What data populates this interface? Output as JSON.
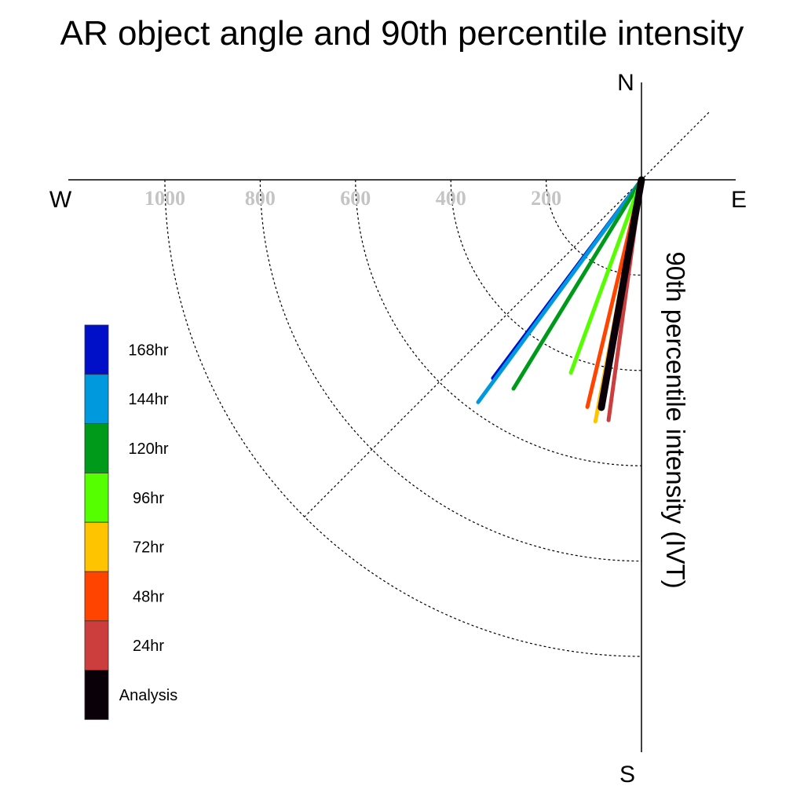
{
  "chart_data": {
    "type": "polar-vector",
    "title": "AR object angle and 90th percentile intensity",
    "radial_label": "90th percentile intensity (IVT)",
    "compass": {
      "north": "N",
      "south": "S",
      "east": "E",
      "west": "W"
    },
    "radial_ticks": [
      200,
      400,
      600,
      800,
      1000
    ],
    "radial_tick_labels": [
      "200",
      "400",
      "600",
      "800",
      "1000"
    ],
    "radial_max": 1100,
    "series": [
      {
        "name": "168hr",
        "color": "#0010c8",
        "angle_deg": 216.8,
        "intensity": 520
      },
      {
        "name": "144hr",
        "color": "#0099dd",
        "angle_deg": 216.3,
        "intensity": 579
      },
      {
        "name": "120hr",
        "color": "#009a1a",
        "angle_deg": 211.5,
        "intensity": 514
      },
      {
        "name": "96hr",
        "color": "#55ff00",
        "angle_deg": 200.1,
        "intensity": 431
      },
      {
        "name": "72hr",
        "color": "#ffc400",
        "angle_deg": 190.8,
        "intensity": 516
      },
      {
        "name": "48hr",
        "color": "#ff4400",
        "angle_deg": 193.4,
        "intensity": 490
      },
      {
        "name": "24hr",
        "color": "#cc3d3d",
        "angle_deg": 187.8,
        "intensity": 509
      },
      {
        "name": "Analysis",
        "color": "#0a0008",
        "angle_deg": 190.0,
        "intensity": 485
      }
    ],
    "legend": {
      "placement": "left",
      "entries": [
        "168hr",
        "144hr",
        "120hr",
        "96hr",
        "72hr",
        "48hr",
        "24hr",
        "Analysis"
      ]
    }
  }
}
